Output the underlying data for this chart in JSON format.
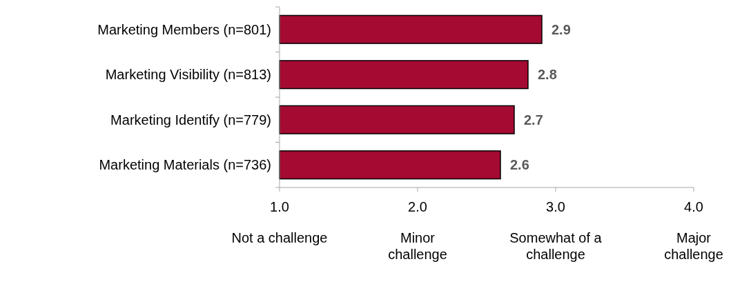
{
  "chart_data": {
    "type": "bar",
    "orientation": "horizontal",
    "categories": [
      "Marketing Members (n=801)",
      "Marketing Visibility (n=813)",
      "Marketing Identify (n=779)",
      "Marketing Materials (n=736)"
    ],
    "values": [
      2.9,
      2.8,
      2.7,
      2.6
    ],
    "color": "#a50a33",
    "data_labels": true,
    "xlim": [
      1,
      4
    ],
    "xticks": [
      {
        "value": 1,
        "label": "1.0"
      },
      {
        "value": 2,
        "label": "2.0"
      },
      {
        "value": 3,
        "label": "3.0"
      },
      {
        "value": 4,
        "label": "4.0"
      }
    ],
    "annotations": [
      "Not a challenge",
      "Minor challenge",
      "Somewhat of a challenge",
      "Major challenge"
    ]
  }
}
